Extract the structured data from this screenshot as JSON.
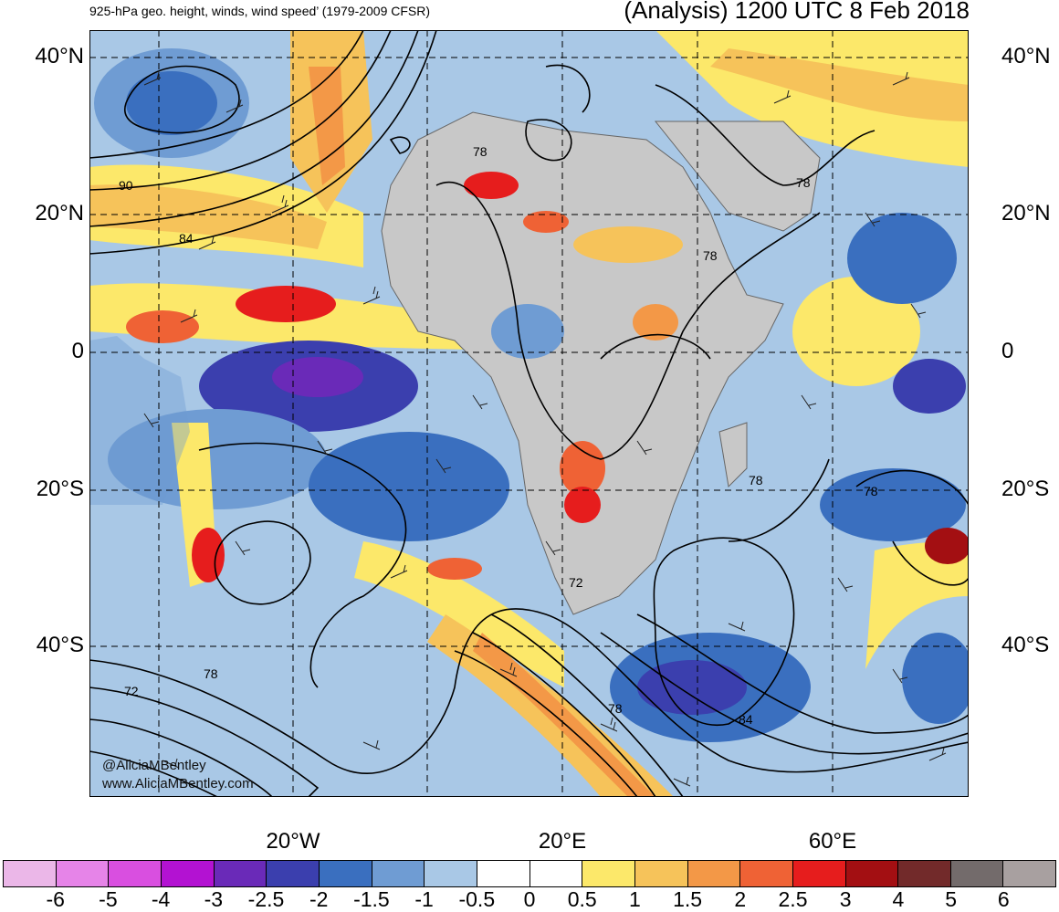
{
  "header": {
    "left_title": "925-hPa geo. height, winds, wind speed’ (1979-2009 CFSR)",
    "right_title": "(Analysis) 1200 UTC 8 Feb 2018"
  },
  "lat_labels": [
    "40°N",
    "20°N",
    "0",
    "20°S",
    "40°S"
  ],
  "lon_labels": [
    "20°W",
    "20°E",
    "60°E"
  ],
  "contour_labels": [
    "90",
    "84",
    "78",
    "78",
    "78",
    "78",
    "78",
    "78",
    "72",
    "72",
    "78",
    "84"
  ],
  "credits": [
    "@AliciaMBentley",
    "www.AliciaMBentley.com"
  ],
  "colorbar": {
    "labels": [
      "-6",
      "-5",
      "-4",
      "-3",
      "-2.5",
      "-2",
      "-1.5",
      "-1",
      "-0.5",
      "0",
      "0.5",
      "1",
      "1.5",
      "2",
      "2.5",
      "3",
      "4",
      "5",
      "6"
    ],
    "colors": [
      "#ebb7e8",
      "#e684e8",
      "#d94fe0",
      "#b312d2",
      "#6a2ab8",
      "#3b3fae",
      "#3a6fbf",
      "#6f9cd3",
      "#a9c8e6",
      "#ffffff",
      "#ffffff",
      "#fce86a",
      "#f6c35a",
      "#f39847",
      "#ef6235",
      "#e61d1d",
      "#a30f12",
      "#722a2a",
      "#736b6b",
      "#a8a0a0"
    ]
  }
}
